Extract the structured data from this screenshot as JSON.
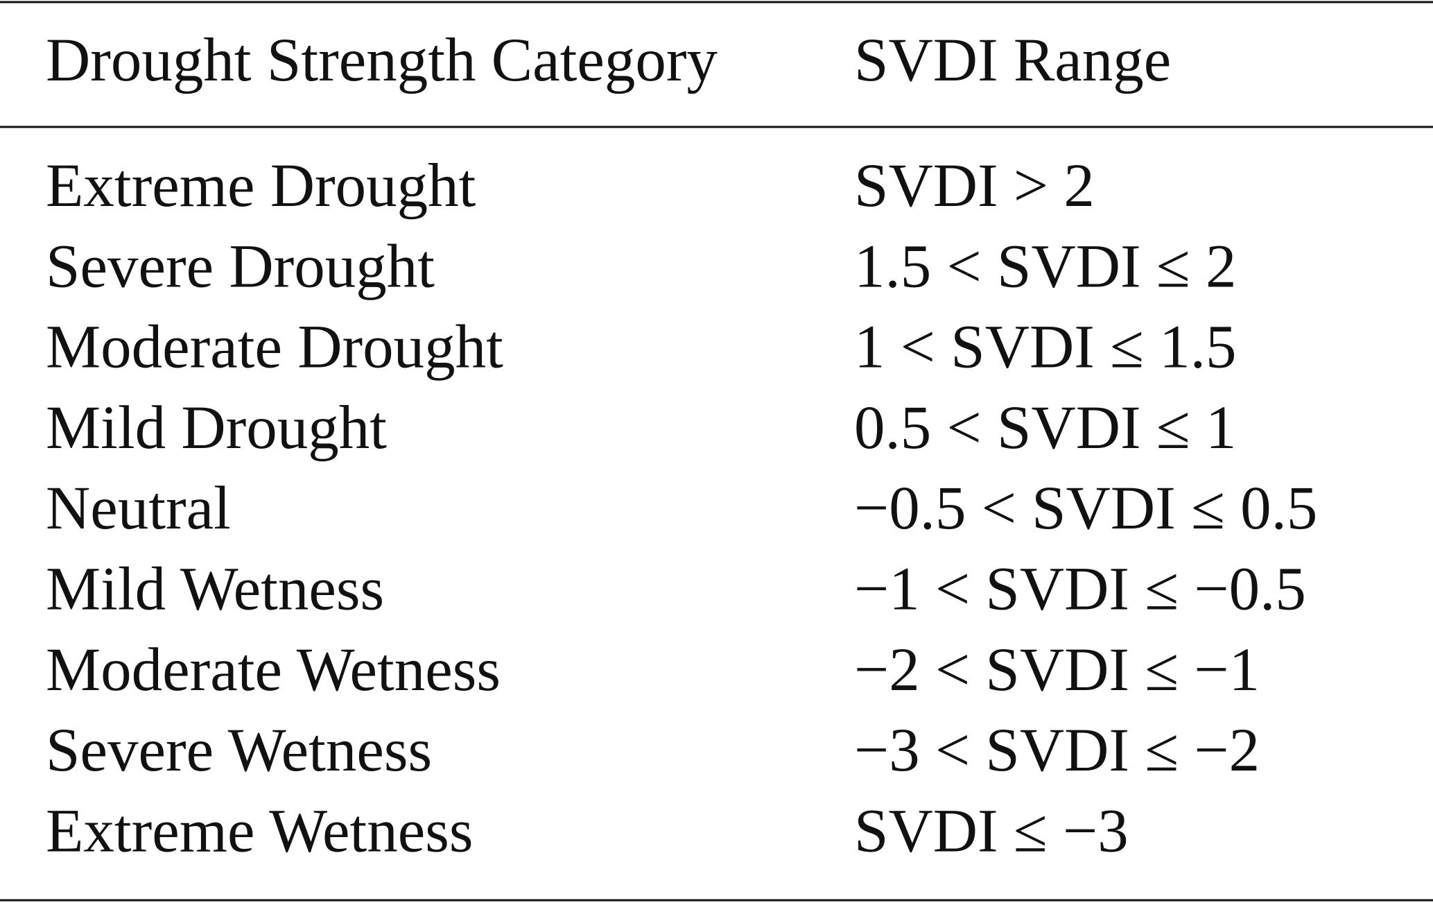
{
  "table": {
    "header": [
      "Drought Strength Category",
      "SVDI Range"
    ],
    "rows": [
      [
        "Extreme Drought",
        "SVDI > 2"
      ],
      [
        "Severe Drought",
        "1.5 < SVDI ≤ 2"
      ],
      [
        "Moderate Drought",
        "1 < SVDI ≤ 1.5"
      ],
      [
        "Mild Drought",
        "0.5 < SVDI ≤ 1"
      ],
      [
        "Neutral",
        "−0.5 < SVDI ≤ 0.5"
      ],
      [
        "Mild Wetness",
        "−1 < SVDI ≤ −0.5"
      ],
      [
        "Moderate Wetness",
        "−2 < SVDI ≤ −1"
      ],
      [
        "Severe Wetness",
        "−3 < SVDI ≤ −2"
      ],
      [
        "Extreme Wetness",
        "SVDI ≤ −3"
      ]
    ]
  }
}
